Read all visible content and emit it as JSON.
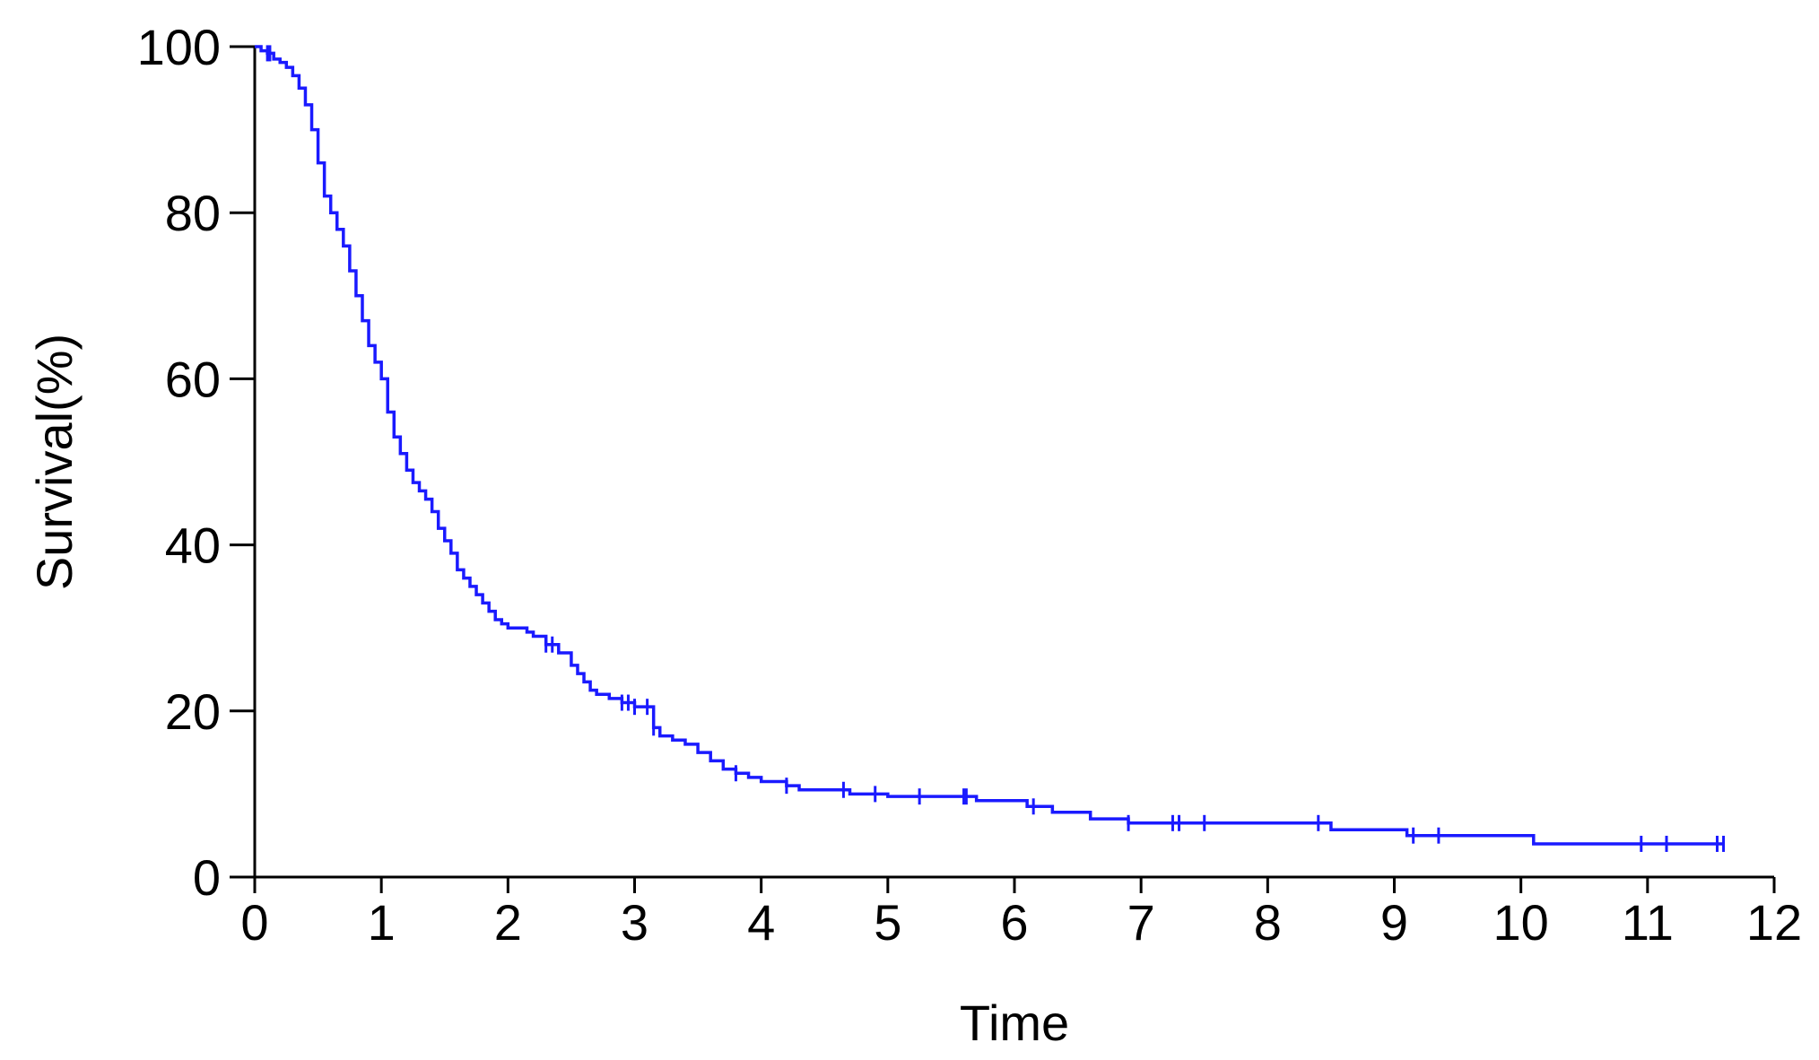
{
  "chart_data": {
    "type": "line",
    "subtype": "kaplan-meier-step",
    "title": "",
    "xlabel": "Time",
    "ylabel": "Survival(%)",
    "xlim": [
      0,
      12
    ],
    "ylim": [
      0,
      100
    ],
    "x_ticks": [
      "0",
      "1",
      "2",
      "3",
      "4",
      "5",
      "6",
      "7",
      "8",
      "9",
      "10",
      "11",
      "12"
    ],
    "y_ticks": [
      "0",
      "20",
      "40",
      "60",
      "80",
      "100"
    ],
    "grid": false,
    "legend": "none",
    "line_color": "#1a1aff",
    "series": [
      {
        "name": "",
        "x": [
          0,
          0.05,
          0.1,
          0.15,
          0.2,
          0.25,
          0.3,
          0.35,
          0.4,
          0.45,
          0.5,
          0.55,
          0.6,
          0.65,
          0.7,
          0.75,
          0.8,
          0.85,
          0.9,
          0.95,
          1.0,
          1.05,
          1.1,
          1.15,
          1.2,
          1.25,
          1.3,
          1.35,
          1.4,
          1.45,
          1.5,
          1.55,
          1.6,
          1.65,
          1.7,
          1.75,
          1.8,
          1.85,
          1.9,
          1.95,
          2.0,
          2.05,
          2.1,
          2.15,
          2.2,
          2.3,
          2.4,
          2.5,
          2.55,
          2.6,
          2.65,
          2.7,
          2.8,
          2.9,
          3.0,
          3.05,
          3.15,
          3.2,
          3.3,
          3.4,
          3.5,
          3.6,
          3.7,
          3.8,
          3.9,
          4.0,
          4.2,
          4.3,
          4.5,
          4.7,
          5.0,
          5.7,
          5.8,
          6.1,
          6.3,
          6.6,
          6.9,
          7.2,
          8.5,
          9.1,
          10.1,
          11.6
        ],
        "y": [
          100,
          99.5,
          99.2,
          98.5,
          98.1,
          97.5,
          96.5,
          95,
          93,
          90,
          86,
          82,
          80,
          78,
          76,
          73,
          70,
          67,
          64,
          62,
          60,
          56,
          53,
          51,
          49,
          47.5,
          46.5,
          45.5,
          44,
          42,
          40.5,
          39,
          37,
          36,
          35,
          34,
          33,
          32,
          31,
          30.5,
          30,
          30,
          30,
          29.5,
          29,
          28,
          27,
          25.5,
          24.5,
          23.5,
          22.5,
          22,
          21.5,
          21,
          20.5,
          20.5,
          18,
          17,
          16.5,
          16,
          15,
          14,
          13,
          12.5,
          12,
          11.5,
          11,
          10.5,
          10.5,
          10,
          9.7,
          9.2,
          9.2,
          8.5,
          7.8,
          7,
          6.5,
          6.5,
          5.7,
          5.0,
          4.0,
          4.0
        ],
        "censored_x": [
          0.1,
          0.12,
          2.3,
          2.35,
          2.9,
          2.95,
          3.0,
          3.1,
          3.15,
          3.8,
          4.2,
          4.65,
          4.9,
          5.25,
          5.6,
          5.62,
          6.15,
          6.9,
          7.25,
          7.3,
          7.5,
          8.4,
          9.15,
          9.35,
          10.95,
          11.15,
          11.55,
          11.6
        ]
      }
    ]
  }
}
